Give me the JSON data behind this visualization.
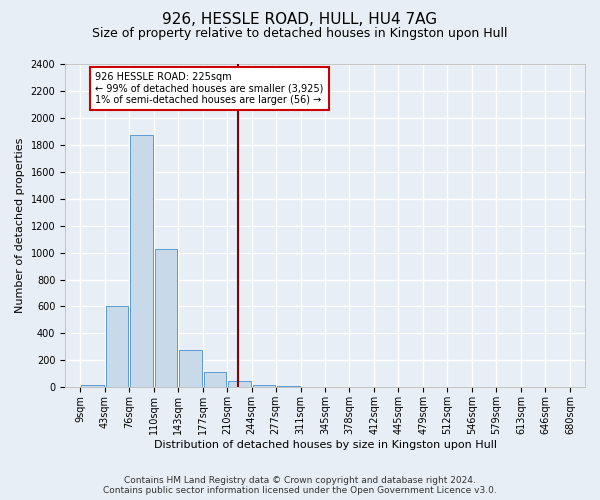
{
  "title1": "926, HESSLE ROAD, HULL, HU4 7AG",
  "title2": "Size of property relative to detached houses in Kingston upon Hull",
  "xlabel": "Distribution of detached houses by size in Kingston upon Hull",
  "ylabel": "Number of detached properties",
  "footer1": "Contains HM Land Registry data © Crown copyright and database right 2024.",
  "footer2": "Contains public sector information licensed under the Open Government Licence v3.0.",
  "bin_edges": [
    9,
    43,
    76,
    110,
    143,
    177,
    210,
    244,
    277,
    311,
    345,
    378,
    412,
    445,
    479,
    512,
    546,
    579,
    613,
    646,
    680
  ],
  "bar_heights": [
    20,
    600,
    1875,
    1030,
    280,
    110,
    45,
    20,
    10,
    5,
    3,
    2,
    2,
    1,
    1,
    1,
    1,
    1,
    1,
    1
  ],
  "bar_color": "#c8d9ea",
  "bar_edge_color": "#5b9bd5",
  "property_size": 225,
  "red_line_color": "#8b0000",
  "annotation_line1": "926 HESSLE ROAD: 225sqm",
  "annotation_line2": "← 99% of detached houses are smaller (3,925)",
  "annotation_line3": "1% of semi-detached houses are larger (56) →",
  "annotation_box_color": "#ffffff",
  "annotation_box_edge": "#cc0000",
  "ylim": [
    0,
    2400
  ],
  "yticks": [
    0,
    200,
    400,
    600,
    800,
    1000,
    1200,
    1400,
    1600,
    1800,
    2000,
    2200,
    2400
  ],
  "bg_color": "#e8eef5",
  "plot_bg_color": "#e8eef5",
  "grid_color": "#ffffff",
  "title1_fontsize": 11,
  "title2_fontsize": 9,
  "ylabel_fontsize": 8,
  "xlabel_fontsize": 8,
  "annotation_fontsize": 7,
  "tick_fontsize": 7,
  "footer_fontsize": 6.5
}
